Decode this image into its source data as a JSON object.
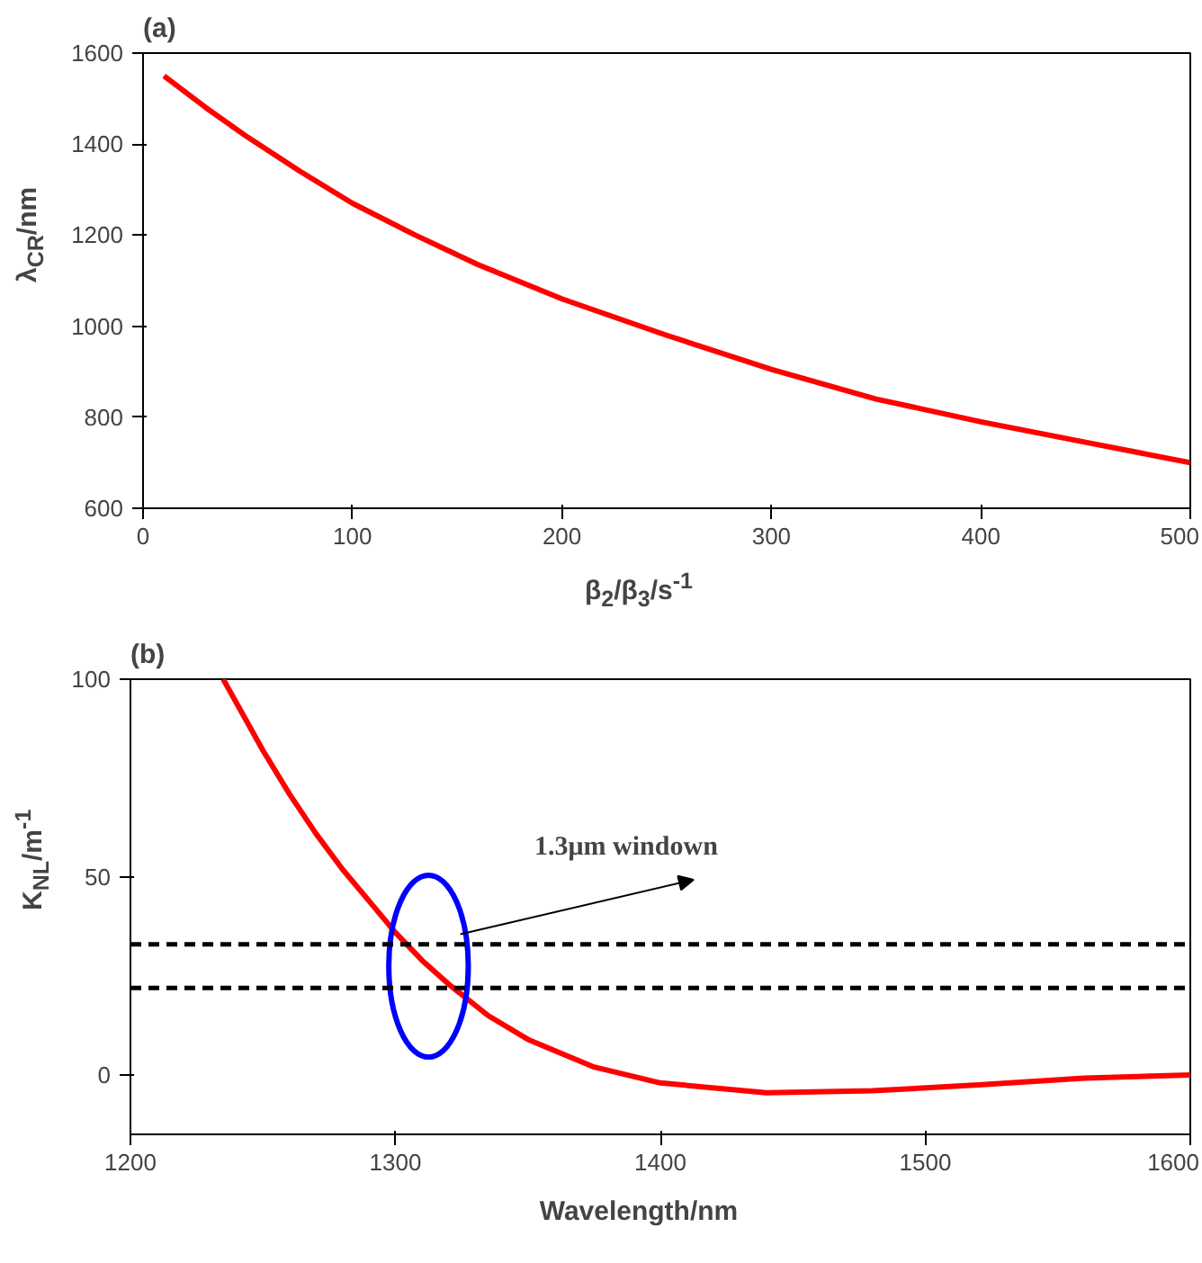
{
  "chart_data": [
    {
      "type": "line",
      "title": "(a)",
      "xlabel": "β$_{2}$/β$_{3}$/s$^{-1}$",
      "ylabel": "λ$_{CR}$/nm",
      "xlim": [
        0,
        500
      ],
      "ylim": [
        600,
        1600
      ],
      "xticks": [
        0,
        100,
        200,
        300,
        400,
        500
      ],
      "yticks": [
        600,
        800,
        1000,
        1200,
        1400,
        1600
      ],
      "grid": false,
      "series": [
        {
          "color": "#ff0000",
          "x": [
            10,
            30,
            50,
            75,
            100,
            130,
            160,
            200,
            250,
            300,
            350,
            400,
            450,
            500
          ],
          "values": [
            1550,
            1480,
            1415,
            1340,
            1270,
            1200,
            1135,
            1060,
            980,
            905,
            840,
            790,
            745,
            700
          ]
        }
      ]
    },
    {
      "type": "line",
      "title": "(b)",
      "xlabel": "Wavelength/nm",
      "ylabel": "K$_{NL}$/m$^{-1}$",
      "xlim": [
        1200,
        1600
      ],
      "ylim": [
        -15,
        100
      ],
      "xticks": [
        1200,
        1300,
        1400,
        1500,
        1600
      ],
      "yticks": [
        0,
        50,
        100
      ],
      "grid": false,
      "series": [
        {
          "color": "#ff0000",
          "x": [
            1235,
            1250,
            1260,
            1270,
            1280,
            1290,
            1300,
            1310,
            1320,
            1335,
            1350,
            1375,
            1400,
            1440,
            1480,
            1520,
            1560,
            1600
          ],
          "values": [
            100,
            82,
            71,
            61,
            52,
            44,
            36,
            29,
            23,
            15,
            9,
            2,
            -2,
            -4.5,
            -4,
            -2.5,
            -0.8,
            0
          ]
        }
      ],
      "ref_lines": [
        {
          "axis": "y",
          "value": 33,
          "color": "#000000",
          "line_style": "dashed"
        },
        {
          "axis": "y",
          "value": 22,
          "color": "#000000",
          "line_style": "dashed"
        }
      ],
      "annotations": [
        "1.3μm windown"
      ]
    }
  ]
}
